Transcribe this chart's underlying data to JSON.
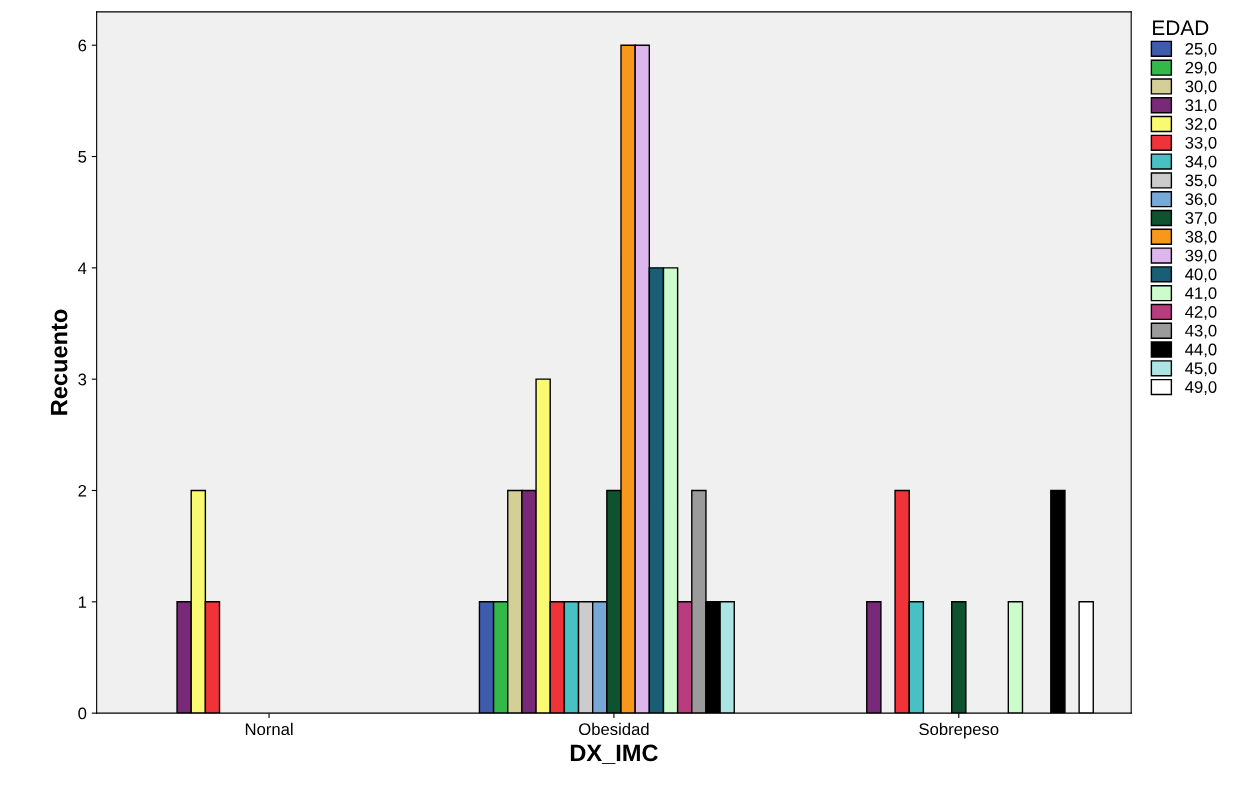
{
  "chart_data": {
    "type": "bar",
    "xlabel": "DX_IMC",
    "ylabel": "Recuento",
    "legend_title": "EDAD",
    "legend": "right",
    "grid": false,
    "categories": [
      "Nornal",
      "Obesidad",
      "Sobrepeso"
    ],
    "ylim": [
      0,
      6.3
    ],
    "yticks": [
      0,
      1,
      2,
      3,
      4,
      5,
      6
    ],
    "series": [
      {
        "name": "25,0",
        "color": "#3f5bab",
        "values": [
          null,
          1,
          null
        ]
      },
      {
        "name": "29,0",
        "color": "#33b84a",
        "values": [
          null,
          1,
          null
        ]
      },
      {
        "name": "30,0",
        "color": "#d4ce97",
        "values": [
          null,
          2,
          null
        ]
      },
      {
        "name": "31,0",
        "color": "#782a78",
        "values": [
          1,
          2,
          1
        ]
      },
      {
        "name": "32,0",
        "color": "#fafa72",
        "values": [
          2,
          3,
          null
        ]
      },
      {
        "name": "33,0",
        "color": "#ef3338",
        "values": [
          1,
          1,
          2
        ]
      },
      {
        "name": "34,0",
        "color": "#49c0c3",
        "values": [
          null,
          1,
          1
        ]
      },
      {
        "name": "35,0",
        "color": "#cccccc",
        "values": [
          null,
          1,
          null
        ]
      },
      {
        "name": "36,0",
        "color": "#78a8d6",
        "values": [
          null,
          1,
          null
        ]
      },
      {
        "name": "37,0",
        "color": "#0e5230",
        "values": [
          null,
          2,
          1
        ]
      },
      {
        "name": "38,0",
        "color": "#f7981d",
        "values": [
          null,
          6,
          null
        ]
      },
      {
        "name": "39,0",
        "color": "#dcb6ec",
        "values": [
          null,
          6,
          null
        ]
      },
      {
        "name": "40,0",
        "color": "#195e74",
        "values": [
          null,
          4,
          null
        ]
      },
      {
        "name": "41,0",
        "color": "#ccfccc",
        "values": [
          null,
          4,
          1
        ]
      },
      {
        "name": "42,0",
        "color": "#b73d7e",
        "values": [
          null,
          1,
          null
        ]
      },
      {
        "name": "43,0",
        "color": "#9b9b9b",
        "values": [
          null,
          2,
          null
        ]
      },
      {
        "name": "44,0",
        "color": "#000000",
        "values": [
          null,
          1,
          2
        ]
      },
      {
        "name": "45,0",
        "color": "#ade4e4",
        "values": [
          null,
          1,
          null
        ]
      },
      {
        "name": "49,0",
        "color": "#ffffff",
        "values": [
          null,
          null,
          1
        ]
      }
    ]
  }
}
